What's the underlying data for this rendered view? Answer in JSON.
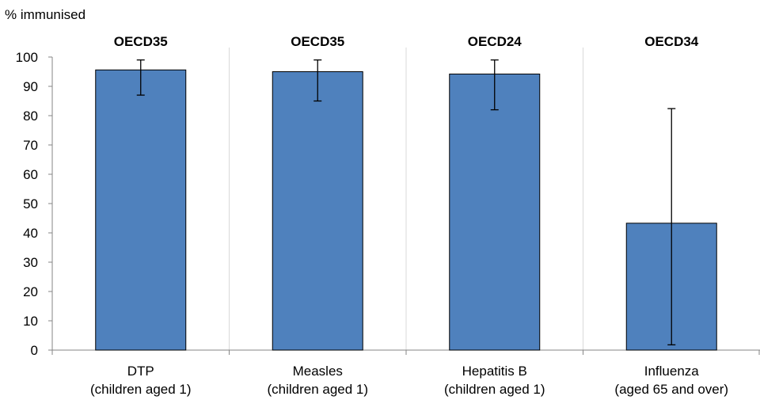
{
  "chart_data": {
    "type": "bar",
    "ylabel": "% immunised",
    "ylim": [
      0,
      100
    ],
    "y_ticks": [
      "0",
      "10",
      "20",
      "30",
      "40",
      "50",
      "60",
      "70",
      "80",
      "90",
      "100"
    ],
    "categories": [
      {
        "line1": "DTP",
        "line2": "(children aged 1)",
        "group": "OECD35"
      },
      {
        "line1": "Measles",
        "line2": "(children aged 1)",
        "group": "OECD35"
      },
      {
        "line1": "Hepatitis B",
        "line2": "(children aged 1)",
        "group": "OECD24"
      },
      {
        "line1": "Influenza",
        "line2": "(aged 65 and over)",
        "group": "OECD34"
      }
    ],
    "values": [
      95.6,
      95.0,
      94.2,
      43.3
    ],
    "error_low": [
      87.0,
      85.0,
      82.0,
      1.8
    ],
    "error_high": [
      99.0,
      99.0,
      99.0,
      82.4
    ],
    "grid": "vertical separators between categories",
    "bar_color": "#4F81BD",
    "bar_border": "#000000"
  }
}
